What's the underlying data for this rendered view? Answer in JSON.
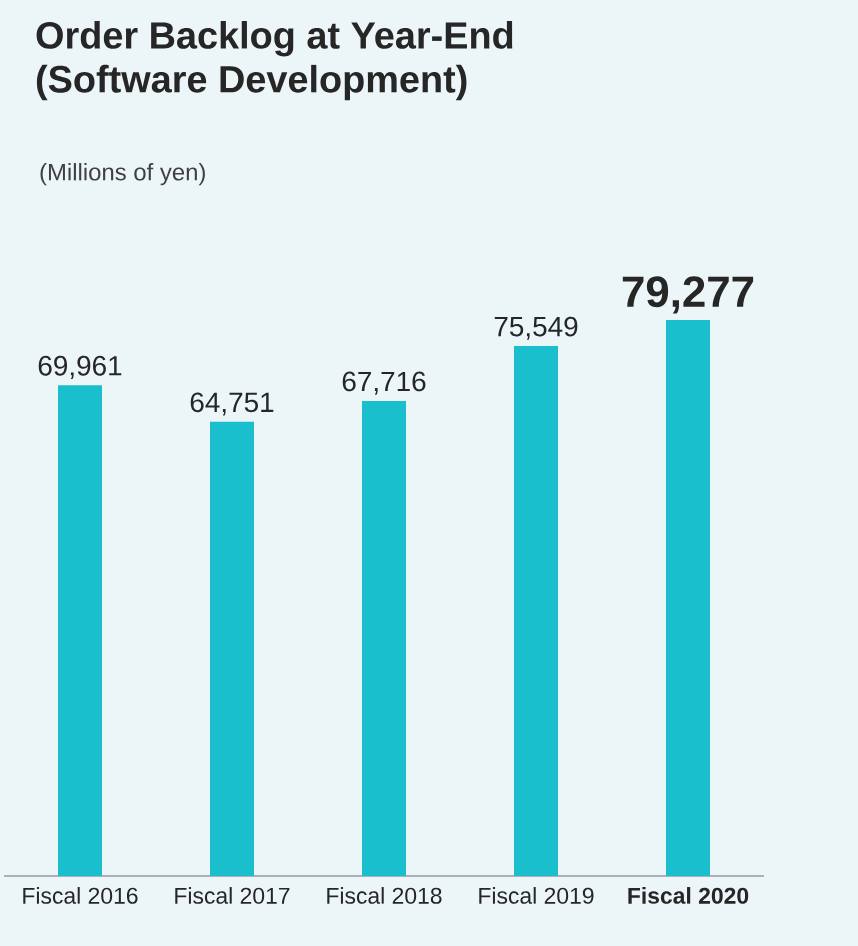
{
  "chart_data": {
    "type": "bar",
    "title": "Order Backlog at Year-End\n(Software Development)",
    "subtitle": "(Millions of yen)",
    "categories": [
      "Fiscal 2016",
      "Fiscal 2017",
      "Fiscal 2018",
      "Fiscal 2019",
      "Fiscal 2020"
    ],
    "values": [
      69961,
      64751,
      67716,
      75549,
      79277
    ],
    "value_labels": [
      "69,961",
      "64,751",
      "67,716",
      "75,549",
      "79,277"
    ],
    "color": "#19bfcc"
  }
}
